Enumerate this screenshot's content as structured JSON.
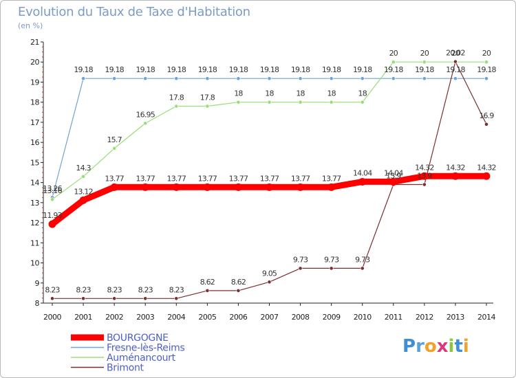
{
  "page": {
    "title": "Evolution du Taux de Taxe d'Habitation",
    "unit": "(en %)",
    "logo": "Proxiti"
  },
  "chart_data": {
    "type": "line",
    "title": "Evolution du Taux de Taxe d'Habitation",
    "ylabel": "(en %)",
    "xlabel": "",
    "ylim": [
      8,
      21
    ],
    "yticks": [
      8,
      9,
      10,
      11,
      12,
      13,
      14,
      15,
      16,
      17,
      18,
      19,
      20,
      21
    ],
    "grid": false,
    "legend_position": "bottom-left",
    "x": [
      2000,
      2001,
      2002,
      2003,
      2004,
      2005,
      2006,
      2007,
      2008,
      2009,
      2010,
      2011,
      2012,
      2013,
      2014
    ],
    "series": [
      {
        "name": "BOURGOGNE",
        "color": "#ff0000",
        "values": [
          11.93,
          13.12,
          13.77,
          13.77,
          13.77,
          13.77,
          13.77,
          13.77,
          13.77,
          13.77,
          14.04,
          14.04,
          14.32,
          14.32,
          14.32
        ],
        "labels": [
          "11.93",
          "13.12",
          "13.77",
          "13.77",
          "13.77",
          "13.77",
          "13.77",
          "13.77",
          "13.77",
          "13.77",
          "14.04",
          "14.04",
          "14.32",
          "14.32",
          "14.32"
        ]
      },
      {
        "name": "Fresne-lès-Reims",
        "color": "#6fa3d6",
        "values": [
          13.26,
          19.18,
          19.18,
          19.18,
          19.18,
          19.18,
          19.18,
          19.18,
          19.18,
          19.18,
          19.18,
          19.18,
          19.18,
          19.18,
          19.18
        ],
        "labels": [
          "13.26",
          "19.18",
          "19.18",
          "19.18",
          "19.18",
          "19.18",
          "19.18",
          "19.18",
          "19.18",
          "19.18",
          "19.18",
          "19.18",
          "19.18",
          "19.18",
          "19.18"
        ]
      },
      {
        "name": "Auménancourt",
        "color": "#99dd77",
        "values": [
          13.16,
          14.3,
          15.7,
          16.95,
          17.8,
          17.8,
          18,
          18,
          18,
          18,
          18,
          20,
          20,
          20,
          20
        ],
        "labels": [
          "13.16",
          "14.3",
          "15.7",
          "16.95",
          "17.8",
          "17.8",
          "18",
          "18",
          "18",
          "18",
          "18",
          "20",
          "20",
          "20",
          "20"
        ]
      },
      {
        "name": "Brimont",
        "color": "#7a2f2f",
        "values": [
          8.23,
          8.23,
          8.23,
          8.23,
          8.23,
          8.62,
          8.62,
          9.05,
          9.73,
          9.73,
          9.73,
          13.9,
          13.9,
          20.02,
          16.9
        ],
        "labels": [
          "8.23",
          "8.23",
          "8.23",
          "8.23",
          "8.23",
          "8.62",
          "8.62",
          "9.05",
          "9.73",
          "9.73",
          "9.73",
          "13.9",
          "13.9",
          "20.02",
          "16.9"
        ]
      }
    ]
  }
}
